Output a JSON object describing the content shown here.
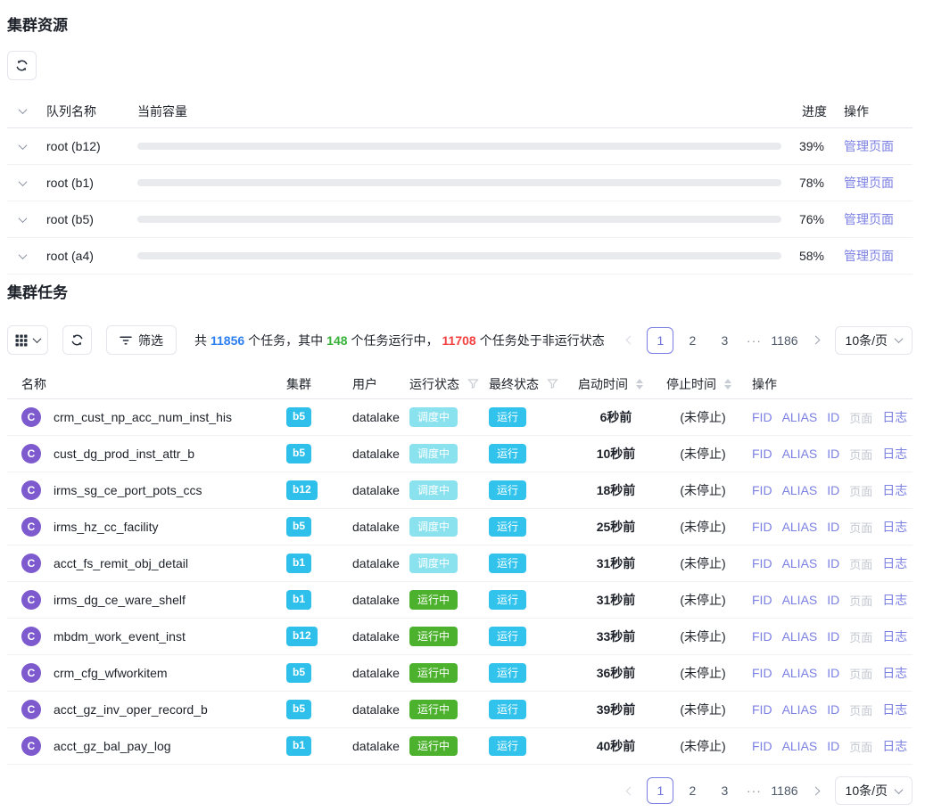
{
  "resources": {
    "title": "集群资源",
    "columns": {
      "queue": "队列名称",
      "capacity": "当前容量",
      "progress": "进度",
      "action": "操作"
    },
    "rows": [
      {
        "name": "root (b12)",
        "percent": 39,
        "percent_label": "39%",
        "action": "管理页面"
      },
      {
        "name": "root (b1)",
        "percent": 78,
        "percent_label": "78%",
        "action": "管理页面"
      },
      {
        "name": "root (b5)",
        "percent": 76,
        "percent_label": "76%",
        "action": "管理页面"
      },
      {
        "name": "root (a4)",
        "percent": 58,
        "percent_label": "58%",
        "action": "管理页面"
      }
    ]
  },
  "tasks": {
    "title": "集群任务",
    "toolbar": {
      "filter_label": "筛选",
      "summary": {
        "p1": "共",
        "total": "11856",
        "p2": "个任务，其中",
        "running": "148",
        "p3": "个任务运行中，",
        "nonrunning": "11708",
        "p4": "个任务处于非运行状态"
      }
    },
    "pagination": {
      "pages": [
        "1",
        "2",
        "3",
        "···",
        "1186"
      ],
      "active": "1",
      "page_size": "10条/页"
    },
    "columns": {
      "name": "名称",
      "cluster": "集群",
      "user": "用户",
      "run_status": "运行状态",
      "final_status": "最终状态",
      "start_time": "启动时间",
      "stop_time": "停止时间",
      "action": "操作"
    },
    "ops": [
      {
        "label": "FID",
        "name": "op-fid",
        "enabled": true
      },
      {
        "label": "ALIAS",
        "name": "op-alias",
        "enabled": true
      },
      {
        "label": "ID",
        "name": "op-id",
        "enabled": true
      },
      {
        "label": "页面",
        "name": "op-page",
        "enabled": false
      },
      {
        "label": "日志",
        "name": "op-log",
        "enabled": true
      }
    ],
    "rows": [
      {
        "avatar": "C",
        "name": "crm_cust_np_acc_num_inst_his",
        "cluster": "b5",
        "user": "datalake",
        "run_status": {
          "label": "调度中",
          "type": "scheduling"
        },
        "final_status": {
          "label": "运行",
          "type": "run"
        },
        "start": "6秒前",
        "stop": "(未停止)"
      },
      {
        "avatar": "C",
        "name": "cust_dg_prod_inst_attr_b",
        "cluster": "b5",
        "user": "datalake",
        "run_status": {
          "label": "调度中",
          "type": "scheduling"
        },
        "final_status": {
          "label": "运行",
          "type": "run"
        },
        "start": "10秒前",
        "stop": "(未停止)"
      },
      {
        "avatar": "C",
        "name": "irms_sg_ce_port_pots_ccs",
        "cluster": "b12",
        "user": "datalake",
        "run_status": {
          "label": "调度中",
          "type": "scheduling"
        },
        "final_status": {
          "label": "运行",
          "type": "run"
        },
        "start": "18秒前",
        "stop": "(未停止)"
      },
      {
        "avatar": "C",
        "name": "irms_hz_cc_facility",
        "cluster": "b5",
        "user": "datalake",
        "run_status": {
          "label": "调度中",
          "type": "scheduling"
        },
        "final_status": {
          "label": "运行",
          "type": "run"
        },
        "start": "25秒前",
        "stop": "(未停止)"
      },
      {
        "avatar": "C",
        "name": "acct_fs_remit_obj_detail",
        "cluster": "b1",
        "user": "datalake",
        "run_status": {
          "label": "调度中",
          "type": "scheduling"
        },
        "final_status": {
          "label": "运行",
          "type": "run"
        },
        "start": "31秒前",
        "stop": "(未停止)"
      },
      {
        "avatar": "C",
        "name": "irms_dg_ce_ware_shelf",
        "cluster": "b1",
        "user": "datalake",
        "run_status": {
          "label": "运行中",
          "type": "running"
        },
        "final_status": {
          "label": "运行",
          "type": "run"
        },
        "start": "31秒前",
        "stop": "(未停止)"
      },
      {
        "avatar": "C",
        "name": "mbdm_work_event_inst",
        "cluster": "b12",
        "user": "datalake",
        "run_status": {
          "label": "运行中",
          "type": "running"
        },
        "final_status": {
          "label": "运行",
          "type": "run"
        },
        "start": "33秒前",
        "stop": "(未停止)"
      },
      {
        "avatar": "C",
        "name": "crm_cfg_wfworkitem",
        "cluster": "b5",
        "user": "datalake",
        "run_status": {
          "label": "运行中",
          "type": "running"
        },
        "final_status": {
          "label": "运行",
          "type": "run"
        },
        "start": "36秒前",
        "stop": "(未停止)"
      },
      {
        "avatar": "C",
        "name": "acct_gz_inv_oper_record_b",
        "cluster": "b5",
        "user": "datalake",
        "run_status": {
          "label": "运行中",
          "type": "running"
        },
        "final_status": {
          "label": "运行",
          "type": "run"
        },
        "start": "39秒前",
        "stop": "(未停止)"
      },
      {
        "avatar": "C",
        "name": "acct_gz_bal_pay_log",
        "cluster": "b1",
        "user": "datalake",
        "run_status": {
          "label": "运行中",
          "type": "running"
        },
        "final_status": {
          "label": "运行",
          "type": "run"
        },
        "start": "40秒前",
        "stop": "(未停止)"
      }
    ]
  },
  "colors": {
    "link_purple": "#7b80e3",
    "progress_blue": "#1a72ef",
    "count_blue": "#2b7ff0",
    "count_green": "#37b33a",
    "count_red": "#f24141",
    "badge_scheduling": "#8ae2ef",
    "badge_running_green": "#4cb12d",
    "badge_final_cyan": "#32c3ec",
    "cluster_cyan": "#2ec0ea",
    "avatar_purple": "#7d5ace"
  },
  "icons": {
    "refresh": "refresh-icon",
    "grid": "grid-apps-icon",
    "filter": "filter-lines-icon",
    "funnel": "column-filter-funnel-icon",
    "sorter": "column-sorter-icon",
    "chevron": "chevron-down-icon"
  }
}
